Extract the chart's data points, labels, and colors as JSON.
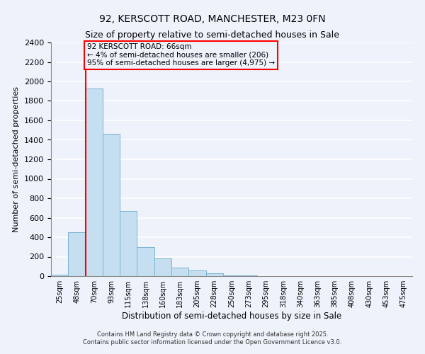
{
  "title": "92, KERSCOTT ROAD, MANCHESTER, M23 0FN",
  "subtitle": "Size of property relative to semi-detached houses in Sale",
  "xlabel": "Distribution of semi-detached houses by size in Sale",
  "ylabel": "Number of semi-detached properties",
  "bar_color": "#c5dff0",
  "bar_edge_color": "#7ab3d0",
  "bin_labels": [
    "25sqm",
    "48sqm",
    "70sqm",
    "93sqm",
    "115sqm",
    "138sqm",
    "160sqm",
    "183sqm",
    "205sqm",
    "228sqm",
    "250sqm",
    "273sqm",
    "295sqm",
    "318sqm",
    "340sqm",
    "363sqm",
    "385sqm",
    "408sqm",
    "430sqm",
    "453sqm",
    "475sqm"
  ],
  "bar_heights": [
    18,
    450,
    1930,
    1460,
    670,
    300,
    180,
    90,
    60,
    30,
    10,
    5,
    0,
    0,
    0,
    0,
    0,
    0,
    0,
    0,
    0
  ],
  "ylim": [
    0,
    2400
  ],
  "yticks": [
    0,
    200,
    400,
    600,
    800,
    1000,
    1200,
    1400,
    1600,
    1800,
    2000,
    2200,
    2400
  ],
  "property_line_color": "red",
  "annotation_title": "92 KERSCOTT ROAD: 66sqm",
  "annotation_line1": "← 4% of semi-detached houses are smaller (206)",
  "annotation_line2": "95% of semi-detached houses are larger (4,975) →",
  "footer_line1": "Contains HM Land Registry data © Crown copyright and database right 2025.",
  "footer_line2": "Contains public sector information licensed under the Open Government Licence v3.0.",
  "background_color": "#eef2fb",
  "grid_color": "white"
}
